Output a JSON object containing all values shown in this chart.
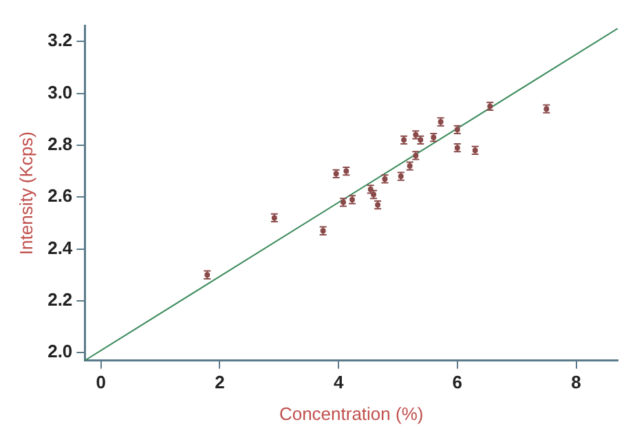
{
  "chart_data": {
    "type": "scatter",
    "xlabel": "Concentration (%)",
    "ylabel": "Intensity (Kcps)",
    "xlim": [
      -0.27,
      8.7
    ],
    "ylim": [
      1.97,
      3.26
    ],
    "xticks": [
      0,
      2,
      4,
      6,
      8
    ],
    "yticks": [
      {
        "value": 2,
        "label": "2.0"
      },
      2.2,
      2.4,
      2.6,
      2.8,
      {
        "value": 3,
        "label": "3.0"
      },
      3.2
    ],
    "grid": false,
    "legend": false,
    "series": [
      {
        "color": "#8b4a4a",
        "marker": "circle",
        "x": [
          1.79,
          2.92,
          3.74,
          3.96,
          4.13,
          4.08,
          4.23,
          4.54,
          4.59,
          4.66,
          4.78,
          5.05,
          5.1,
          5.2,
          5.3,
          5.3,
          5.38,
          5.6,
          5.72,
          6.0,
          6.0,
          6.3,
          6.55,
          7.5
        ],
        "values": [
          2.3,
          2.52,
          2.47,
          2.69,
          2.7,
          2.58,
          2.59,
          2.63,
          2.61,
          2.57,
          2.67,
          2.68,
          2.82,
          2.72,
          2.76,
          2.84,
          2.82,
          2.83,
          2.89,
          2.79,
          2.86,
          2.78,
          2.95,
          2.94
        ],
        "errors": [
          0.015,
          0.015,
          0.015,
          0.015,
          0.015,
          0.015,
          0.015,
          0.015,
          0.015,
          0.015,
          0.015,
          0.015,
          0.015,
          0.015,
          0.015,
          0.015,
          0.015,
          0.015,
          0.015,
          0.015,
          0.015,
          0.015,
          0.015,
          0.015
        ]
      },
      {
        "type": "line",
        "marker": "none",
        "color": "#3a8a5a",
        "x": [
          -0.27,
          8.7
        ],
        "values": [
          1.97,
          3.25
        ]
      }
    ]
  }
}
